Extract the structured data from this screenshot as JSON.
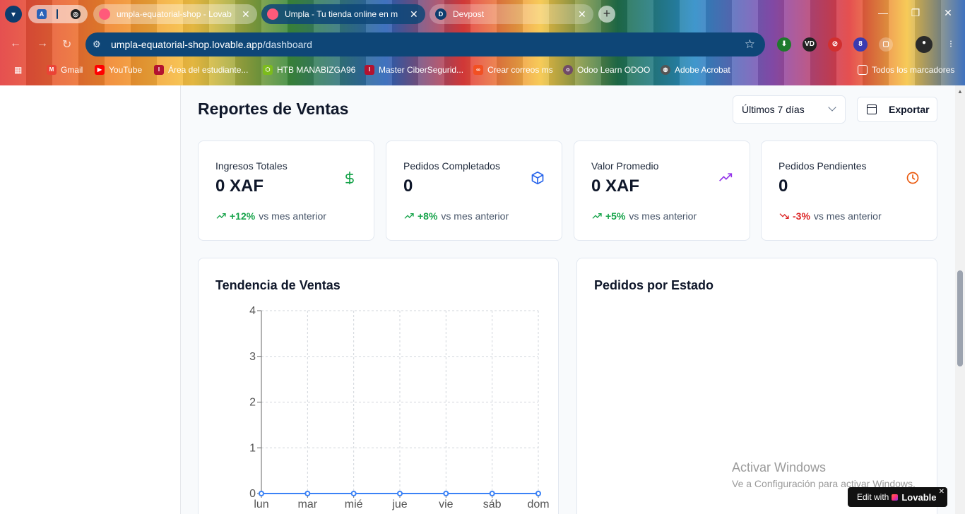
{
  "browser": {
    "tabs": [
      {
        "title": "umpla-equatorial-shop - Lovab",
        "active": false
      },
      {
        "title": "Umpla - Tu tienda online en m",
        "active": true
      },
      {
        "title": "Devpost",
        "active": false
      }
    ],
    "new_tab_label": "+",
    "url_host": "umpla-equatorial-shop.lovable.app",
    "url_path": "/dashboard",
    "bookmarks": [
      "Gmail",
      "YouTube",
      "Área del estudiante...",
      "HTB MANABIZGA96",
      "Master CiberSegurid...",
      "Crear correos ms",
      "Odoo Learn ODOO",
      "Adobe Acrobat"
    ],
    "all_bookmarks": "Todos los marcadores",
    "extension_badge": "8"
  },
  "page": {
    "title": "Reportes de Ventas",
    "range_select": "Últimos 7 días",
    "export_label": "Exportar"
  },
  "stats": [
    {
      "label": "Ingresos Totales",
      "value": "0 XAF",
      "change": "+12%",
      "suffix": "vs mes anterior",
      "icon": "dollar-icon",
      "icon_color": "#16a34a",
      "trend": "up"
    },
    {
      "label": "Pedidos Completados",
      "value": "0",
      "change": "+8%",
      "suffix": "vs mes anterior",
      "icon": "package-icon",
      "icon_color": "#2563eb",
      "trend": "up"
    },
    {
      "label": "Valor Promedio",
      "value": "0 XAF",
      "change": "+5%",
      "suffix": "vs mes anterior",
      "icon": "trending-up-icon",
      "icon_color": "#9333ea",
      "trend": "up"
    },
    {
      "label": "Pedidos Pendientes",
      "value": "0",
      "change": "-3%",
      "suffix": "vs mes anterior",
      "icon": "clock-icon",
      "icon_color": "#ea580c",
      "trend": "down"
    }
  ],
  "colors": {
    "up": "#16a34a",
    "down": "#dc2626",
    "line": "#3b82f6"
  },
  "panels": {
    "sales_trend_title": "Tendencia de Ventas",
    "orders_by_status_title": "Pedidos por Estado"
  },
  "chart_data": {
    "type": "line",
    "title": "Tendencia de Ventas",
    "categories": [
      "lun",
      "mar",
      "mié",
      "jue",
      "vie",
      "sáb",
      "dom"
    ],
    "series": [
      {
        "values": [
          0,
          0,
          0,
          0,
          0,
          0,
          0
        ]
      }
    ],
    "yticks": [
      0,
      1,
      2,
      3,
      4
    ],
    "ylim": [
      0,
      4
    ],
    "grid": true
  },
  "watermark": {
    "line1": "Activar Windows",
    "line2": "Ve a Configuración para activar Windows."
  },
  "lovable_badge": {
    "prefix": "Edit with",
    "brand": "Lovable"
  }
}
